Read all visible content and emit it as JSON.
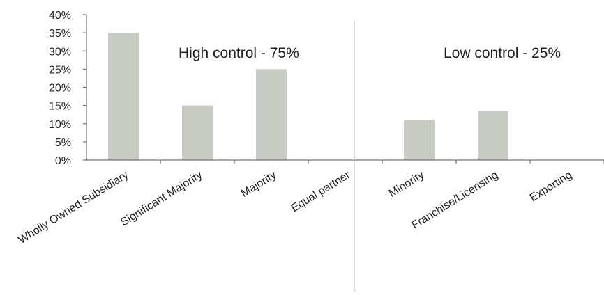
{
  "chart_data": {
    "type": "bar",
    "title": "",
    "xlabel": "",
    "ylabel": "",
    "categories": [
      "Wholly Owned Subsidiary",
      "Significant Majority",
      "Majority",
      "Equal partner",
      "Minority",
      "Franchise/Licensing",
      "Exporting"
    ],
    "values": [
      35,
      15,
      25,
      0,
      11,
      13.5,
      0
    ],
    "ylim": [
      0,
      40
    ],
    "y_ticks": [
      "0%",
      "5%",
      "10%",
      "15%",
      "20%",
      "25%",
      "30%",
      "35%",
      "40%"
    ],
    "grid": false,
    "bar_color": "#c8cac4",
    "axis_color": "#555555",
    "annotations": [
      {
        "text": "High control - 75%"
      },
      {
        "text": "Low control - 25%"
      }
    ]
  }
}
